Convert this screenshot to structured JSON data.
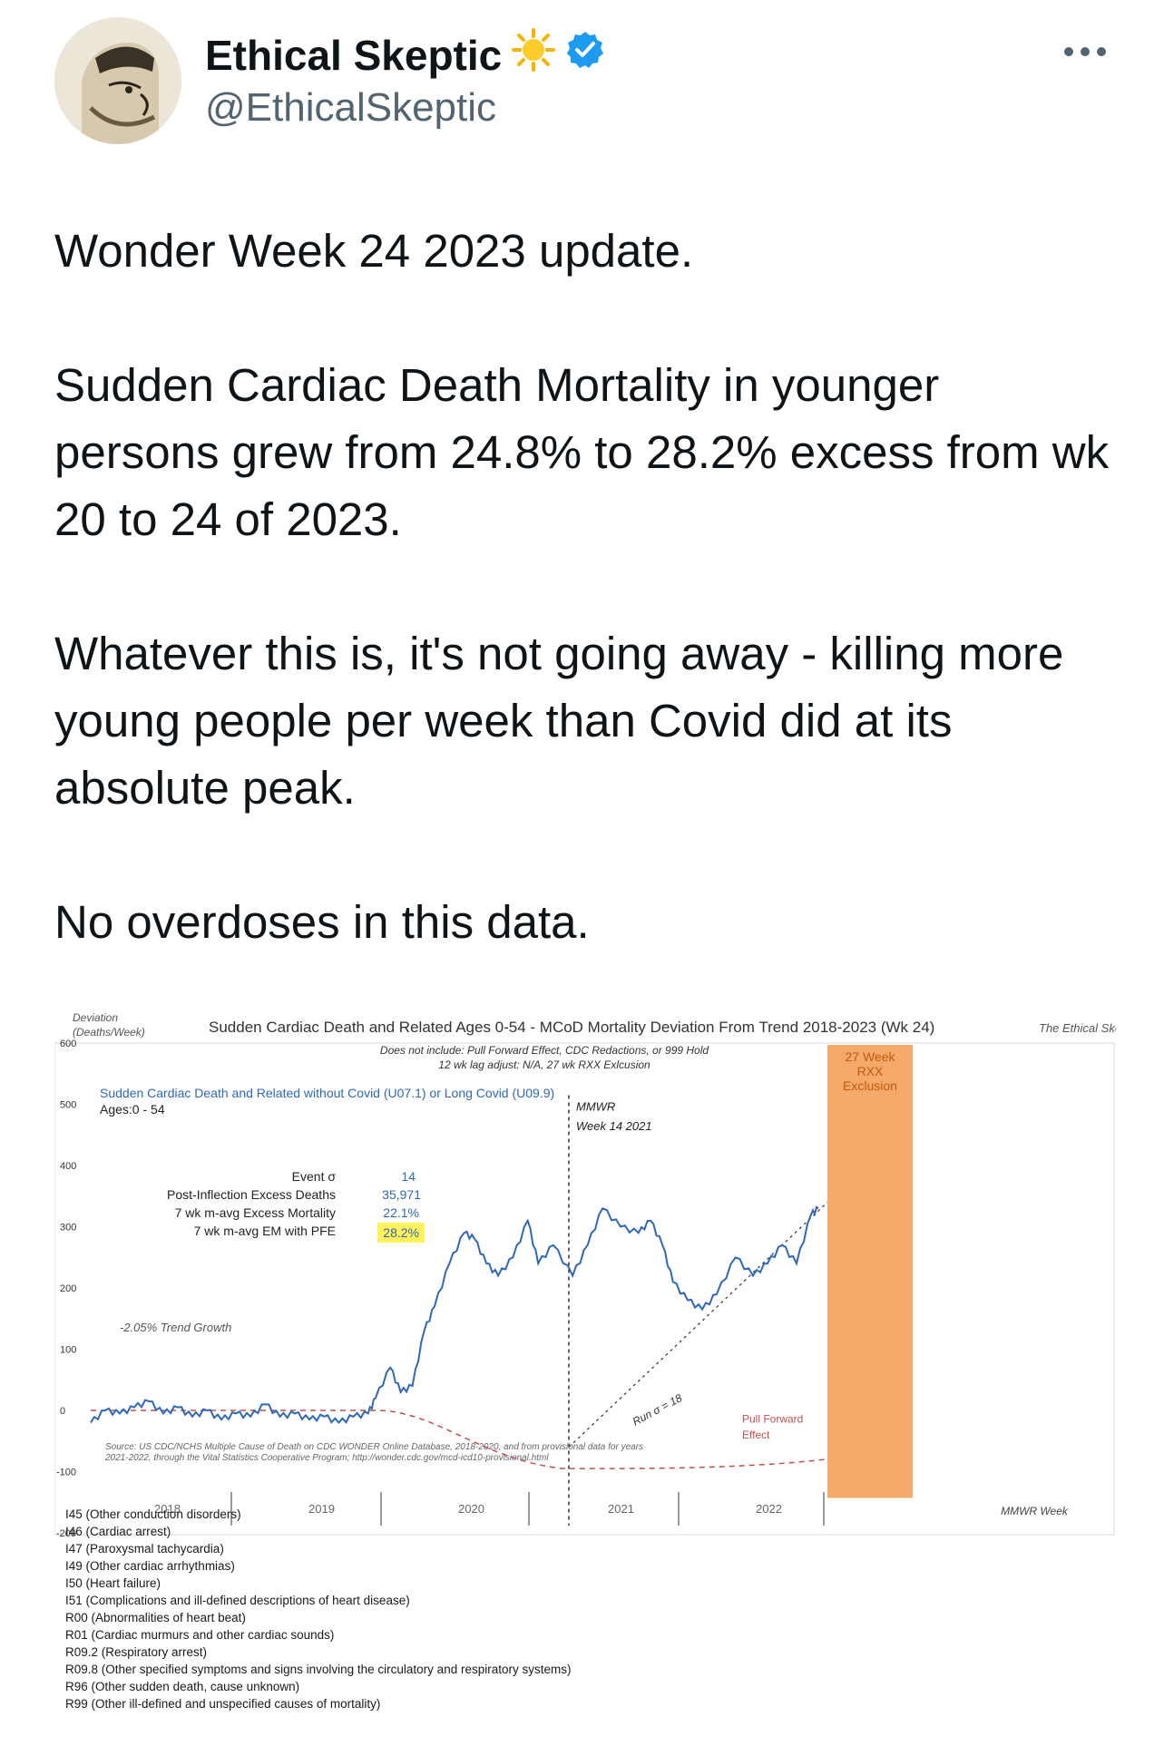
{
  "tweet": {
    "display_name": "Ethical Skeptic",
    "emoji_icon": "sun-emoji",
    "verified_icon": "verified-badge-icon",
    "handle": "@EthicalSkeptic",
    "more_icon": "more-options-icon",
    "paragraphs": [
      "Wonder Week 24 2023 update.",
      "Sudden Cardiac Death Mortality in younger persons grew from 24.8% to 28.2% excess from wk 20 to 24 of 2023.",
      "Whatever this is, it's not going away - killing more young people per week than Covid did at its absolute peak.",
      "No overdoses in this data."
    ]
  },
  "chart_data": {
    "type": "line",
    "title": "Sudden Cardiac Death and Related Ages 0-54 - MCoD Mortality Deviation From Trend  2018-2023 (Wk 24)",
    "subtitle_1": "Does not include: Pull Forward Effect, CDC Redactions, or 999 Hold",
    "subtitle_2": "12 wk lag adjust: N/A, 27 wk RXX Exlcusion",
    "brand": "The Ethical Skeptic",
    "ylabel_1": "Deviation",
    "ylabel_2": "(Deaths/Week)",
    "xlabel": "MMWR Week",
    "ylim": [
      -200,
      600
    ],
    "yticks": [
      "600",
      "500",
      "400",
      "300",
      "200",
      "100",
      "0",
      "-100",
      "-200"
    ],
    "yticks_values": [
      600,
      500,
      400,
      300,
      200,
      100,
      0,
      -100,
      -200
    ],
    "year_labels": [
      "2018",
      "2019",
      "2020",
      "2021",
      "2022"
    ],
    "series_label": "Sudden Cardiac Death and Related without Covid (U07.1) or Long Covid (U09.9)",
    "ages_label": "Ages:0 - 54",
    "stats": [
      {
        "label": "Event σ",
        "value": "14"
      },
      {
        "label": "Post-Inflection Excess Deaths",
        "value": "35,971"
      },
      {
        "label": "7 wk m-avg Excess Mortality",
        "value": "22.1%"
      },
      {
        "label": "7 wk m-avg EM with PFE",
        "value": "28.2%"
      }
    ],
    "trend_growth_label": "-2.05% Trend Growth",
    "mmwr_marker_1": "MMWR",
    "mmwr_marker_2": "Week 14 2021",
    "run_sigma_label": "Run σ = 18",
    "pull_forward_1": "Pull Forward",
    "pull_forward_2": "Effect",
    "exclusion_1": "27 Week",
    "exclusion_2": "RXX",
    "exclusion_3": "Exclusion",
    "source_1": "Source: US CDC/NCHS Multiple Cause of Death on CDC WONDER Online Database, 2018-2020, and from provisional data for years",
    "source_2": "2021-2022, through the Vital Statistics Cooperative Program; http://wonder.cdc.gov/mcd-icd10-provisional.html",
    "colors": {
      "series": "#2f68b8",
      "pull_forward": "#c0504d",
      "exclusion": "#f5a96a",
      "highlight": "#fff25a"
    },
    "series_points": [
      [
        2018.0,
        -20
      ],
      [
        2018.1,
        0
      ],
      [
        2018.2,
        -5
      ],
      [
        2018.3,
        5
      ],
      [
        2018.4,
        15
      ],
      [
        2018.5,
        -5
      ],
      [
        2018.6,
        5
      ],
      [
        2018.7,
        -10
      ],
      [
        2018.8,
        0
      ],
      [
        2018.9,
        -15
      ],
      [
        2019.0,
        -5
      ],
      [
        2019.1,
        -10
      ],
      [
        2019.2,
        10
      ],
      [
        2019.3,
        -10
      ],
      [
        2019.4,
        -5
      ],
      [
        2019.5,
        -15
      ],
      [
        2019.6,
        -10
      ],
      [
        2019.7,
        -20
      ],
      [
        2019.8,
        -10
      ],
      [
        2019.9,
        -5
      ],
      [
        2019.95,
        20
      ],
      [
        2020.05,
        70
      ],
      [
        2020.12,
        30
      ],
      [
        2020.2,
        40
      ],
      [
        2020.28,
        130
      ],
      [
        2020.35,
        170
      ],
      [
        2020.45,
        240
      ],
      [
        2020.55,
        290
      ],
      [
        2020.62,
        280
      ],
      [
        2020.7,
        240
      ],
      [
        2020.78,
        220
      ],
      [
        2020.88,
        250
      ],
      [
        2020.98,
        310
      ],
      [
        2021.05,
        240
      ],
      [
        2021.15,
        270
      ],
      [
        2021.28,
        220
      ],
      [
        2021.38,
        270
      ],
      [
        2021.48,
        330
      ],
      [
        2021.6,
        300
      ],
      [
        2021.72,
        290
      ],
      [
        2021.8,
        310
      ],
      [
        2021.88,
        270
      ],
      [
        2021.95,
        210
      ],
      [
        2022.05,
        180
      ],
      [
        2022.15,
        165
      ],
      [
        2022.25,
        190
      ],
      [
        2022.38,
        250
      ],
      [
        2022.5,
        220
      ],
      [
        2022.6,
        240
      ],
      [
        2022.7,
        270
      ],
      [
        2022.8,
        240
      ],
      [
        2022.9,
        320
      ],
      [
        2022.95,
        330
      ]
    ],
    "legend_codes": [
      "I45 (Other conduction disorders)",
      "I46 (Cardiac arrest)",
      "I47 (Paroxysmal tachycardia)",
      "I49 (Other cardiac arrhythmias)",
      "I50 (Heart failure)",
      "I51 (Complications and ill-defined descriptions of heart disease)",
      "R00 (Abnormalities of heart beat)",
      "R01 (Cardiac murmurs and other cardiac sounds)",
      "R09.2 (Respiratory arrest)",
      "R09.8 (Other specified symptoms and signs involving the circulatory and respiratory systems)",
      "R96 (Other sudden death, cause unknown)",
      "R99 (Other ill-defined and unspecified causes of mortality)"
    ]
  }
}
